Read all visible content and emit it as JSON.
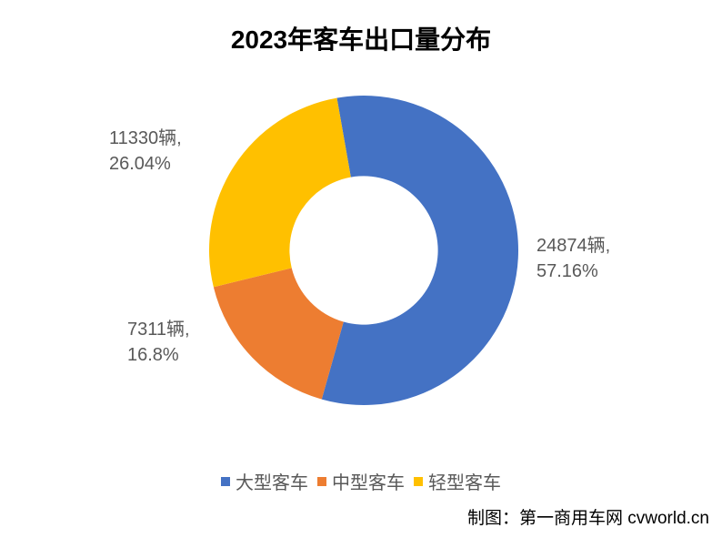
{
  "chart": {
    "type": "donut",
    "title": "2023年客车出口量分布",
    "title_fontsize": 28,
    "title_fontweight": "bold",
    "title_color": "#000000",
    "background_color": "#ffffff",
    "inner_radius_ratio": 0.48,
    "outer_radius": 170,
    "start_angle_deg": -10,
    "slices": [
      {
        "name": "大型客车",
        "value": 24874,
        "percent": 57.16,
        "color": "#4472c4",
        "label_line1": "24874辆,",
        "label_line2": "57.16%"
      },
      {
        "name": "中型客车",
        "value": 7311,
        "percent": 16.8,
        "color": "#ed7d31",
        "label_line1": "7311辆,",
        "label_line2": "16.8%"
      },
      {
        "name": "轻型客车",
        "value": 11330,
        "percent": 26.04,
        "color": "#ffc000",
        "label_line1": "11330辆,",
        "label_line2": "26.04%"
      }
    ],
    "label_fontsize": 20,
    "label_color": "#595959",
    "legend": {
      "position": "bottom",
      "fontsize": 20,
      "color": "#595959",
      "marker_size": 10,
      "items": [
        {
          "label": "大型客车",
          "color": "#4472c4"
        },
        {
          "label": "中型客车",
          "color": "#ed7d31"
        },
        {
          "label": "轻型客车",
          "color": "#ffc000"
        }
      ]
    },
    "attribution": "制图：第一商用车网 cvworld.cn",
    "attribution_fontsize": 19,
    "attribution_color": "#000000"
  }
}
